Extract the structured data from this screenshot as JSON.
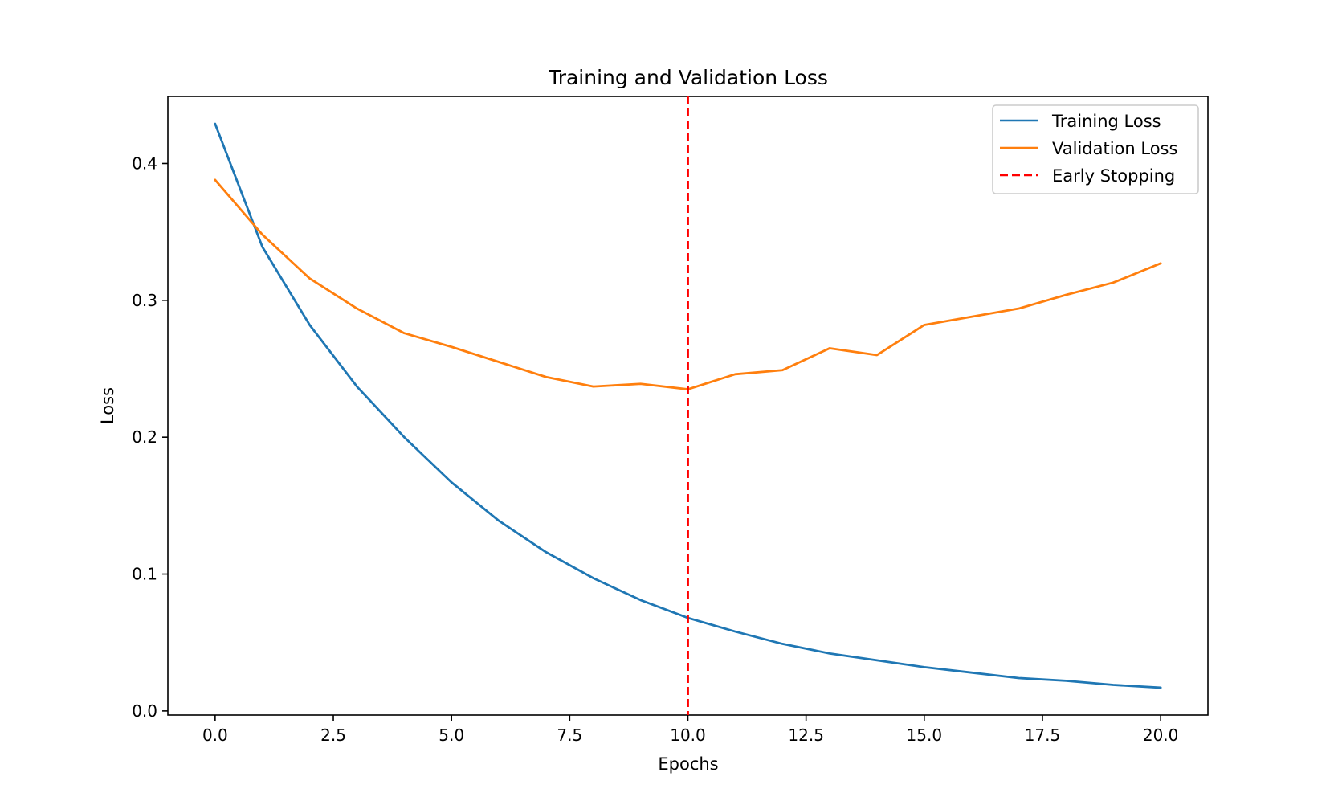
{
  "chart_data": {
    "type": "line",
    "title": "Training and Validation Loss",
    "xlabel": "Epochs",
    "ylabel": "Loss",
    "xlim": [
      -1,
      21
    ],
    "ylim": [
      -0.003,
      0.449
    ],
    "grid": false,
    "legend_position": "top-right",
    "x_ticks": [
      0.0,
      2.5,
      5.0,
      7.5,
      10.0,
      12.5,
      15.0,
      17.5,
      20.0
    ],
    "x_tick_labels": [
      "0.0",
      "2.5",
      "5.0",
      "7.5",
      "10.0",
      "12.5",
      "15.0",
      "17.5",
      "20.0"
    ],
    "y_ticks": [
      0.0,
      0.1,
      0.2,
      0.3,
      0.4
    ],
    "y_tick_labels": [
      "0.0",
      "0.1",
      "0.2",
      "0.3",
      "0.4"
    ],
    "x": [
      0,
      1,
      2,
      3,
      4,
      5,
      6,
      7,
      8,
      9,
      10,
      11,
      12,
      13,
      14,
      15,
      16,
      17,
      18,
      19,
      20
    ],
    "series": [
      {
        "name": "Training Loss",
        "color": "#1f77b4",
        "dashed": false,
        "values": [
          0.429,
          0.339,
          0.282,
          0.237,
          0.2,
          0.167,
          0.139,
          0.116,
          0.097,
          0.081,
          0.068,
          0.058,
          0.049,
          0.042,
          0.037,
          0.032,
          0.028,
          0.024,
          0.022,
          0.019,
          0.017
        ]
      },
      {
        "name": "Validation Loss",
        "color": "#ff7f0e",
        "dashed": false,
        "values": [
          0.388,
          0.348,
          0.316,
          0.294,
          0.276,
          0.266,
          0.255,
          0.244,
          0.237,
          0.239,
          0.235,
          0.246,
          0.249,
          0.265,
          0.26,
          0.282,
          0.288,
          0.294,
          0.304,
          0.313,
          0.327
        ]
      }
    ],
    "vlines": [
      {
        "name": "Early Stopping",
        "x": 10,
        "color": "#ff0000",
        "dashed": true
      }
    ]
  }
}
